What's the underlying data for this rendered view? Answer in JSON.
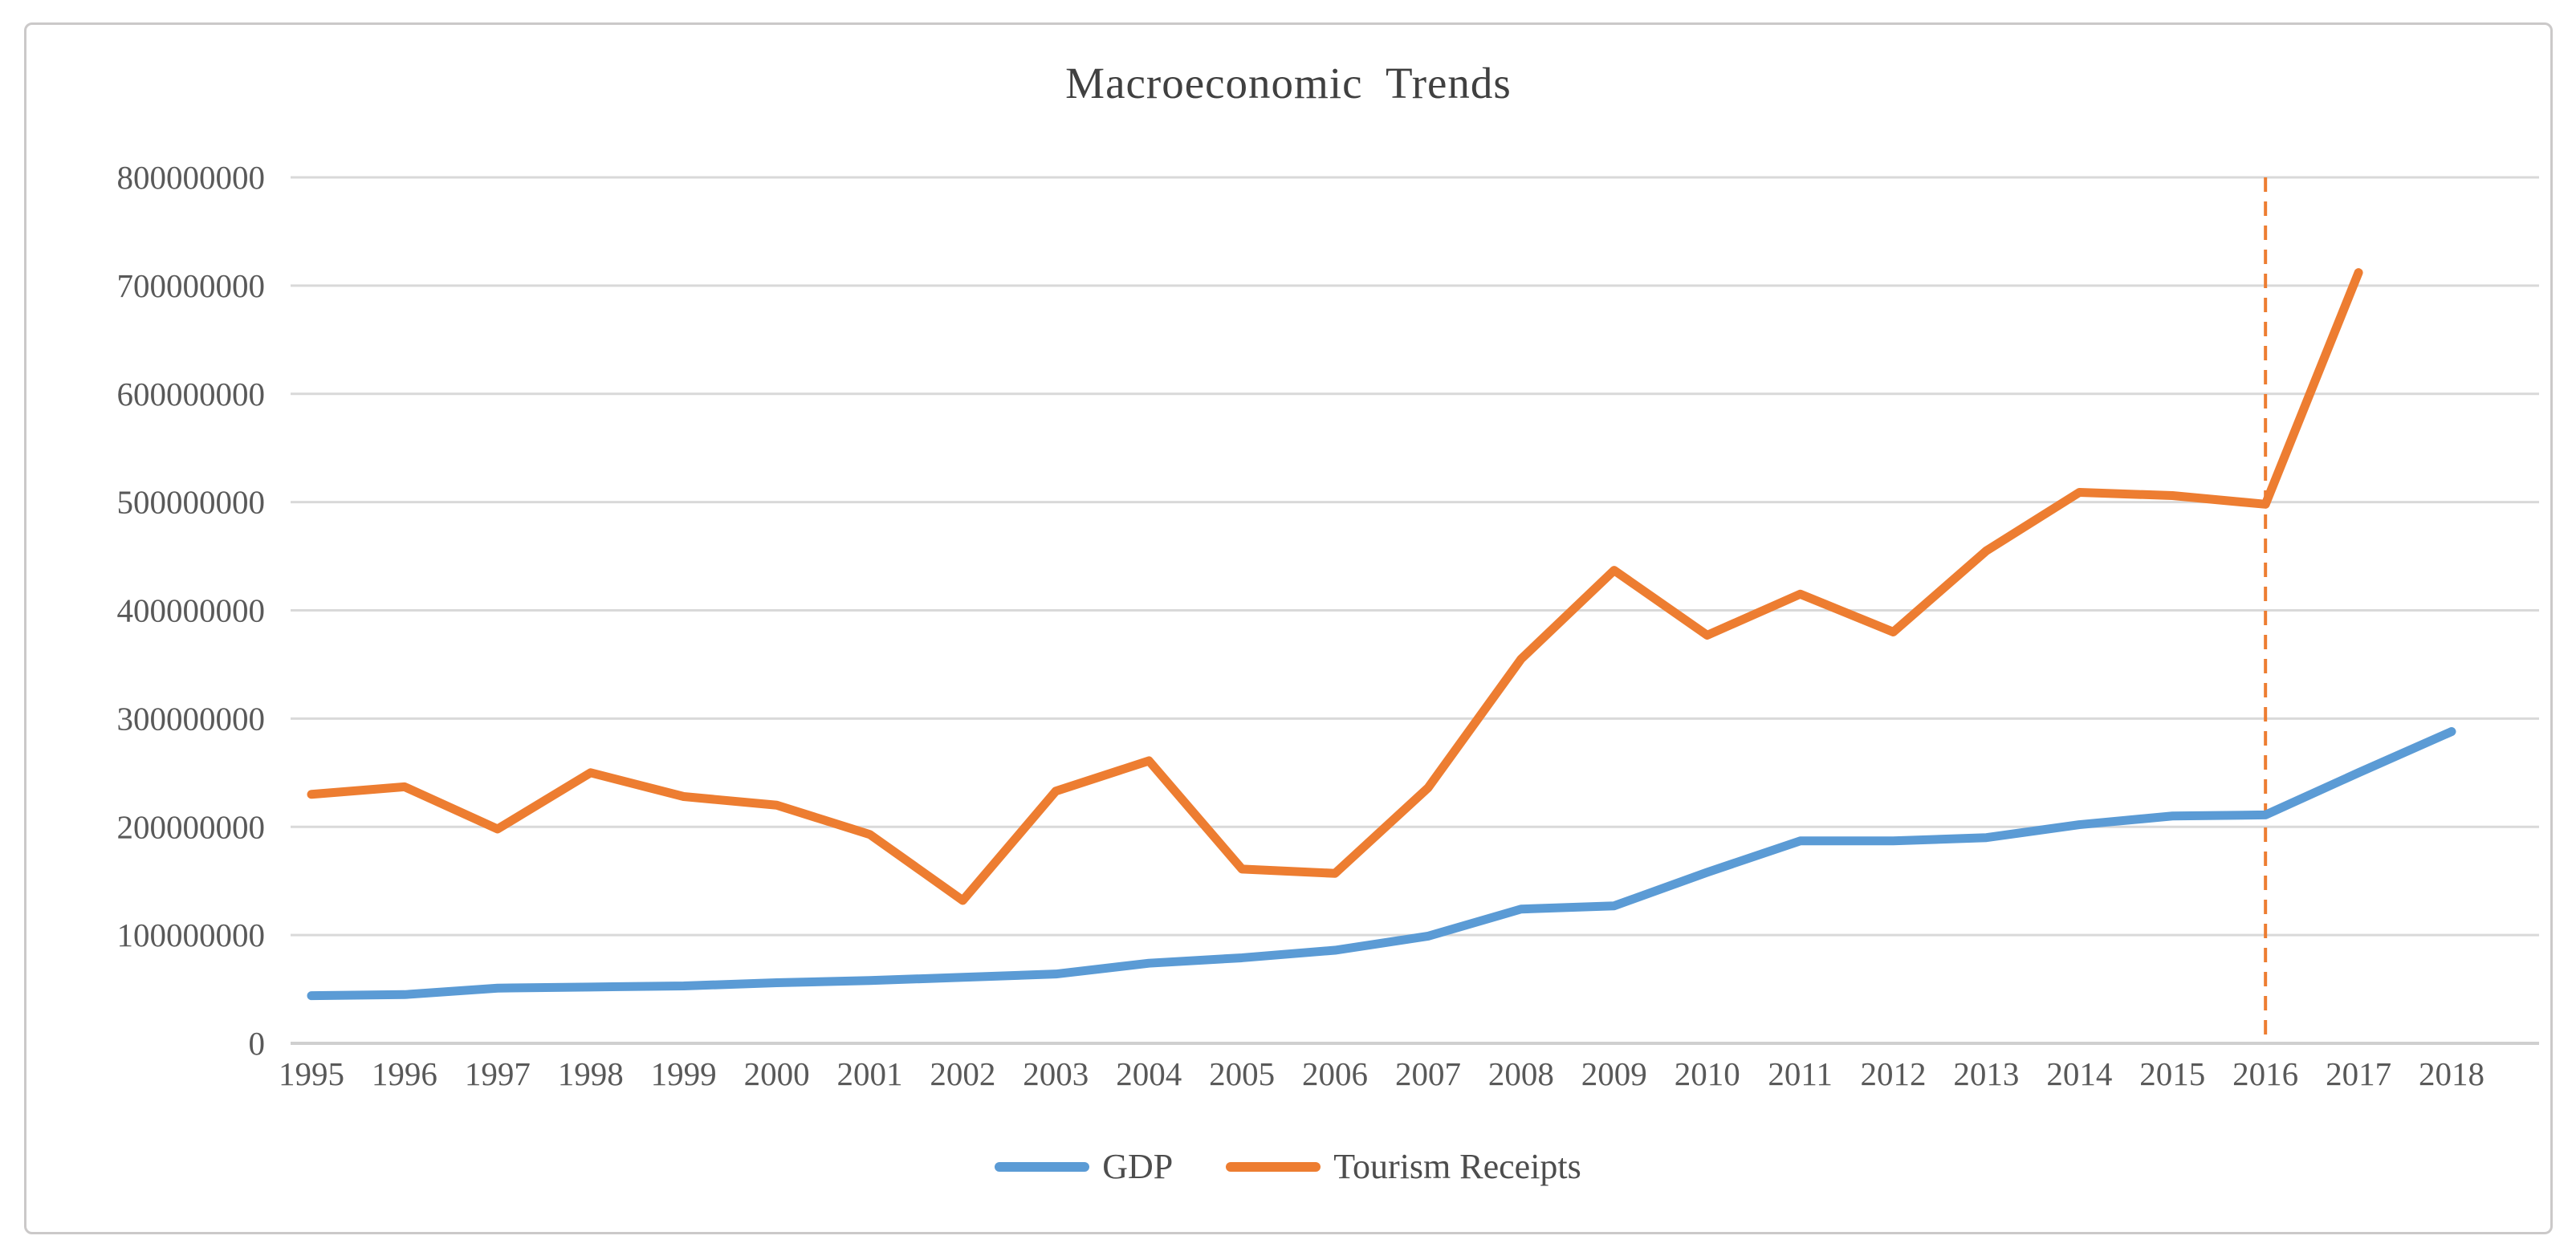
{
  "title": "Macroeconomic  Trends",
  "legend": {
    "items": [
      {
        "label": "GDP",
        "color": "#5b9bd5"
      },
      {
        "label": "Tourism Receipts",
        "color": "#ed7d31"
      }
    ]
  },
  "y_axis": {
    "labels": [
      "800000000",
      "700000000",
      "600000000",
      "500000000",
      "400000000",
      "300000000",
      "200000000",
      "100000000",
      "0"
    ]
  },
  "x_axis": {
    "labels": [
      "1995",
      "1996",
      "1997",
      "1998",
      "1999",
      "2000",
      "2001",
      "2002",
      "2003",
      "2004",
      "2005",
      "2006",
      "2007",
      "2008",
      "2009",
      "2010",
      "2011",
      "2012",
      "2013",
      "2014",
      "2015",
      "2016",
      "2017",
      "2018"
    ]
  },
  "colors": {
    "gdp_line": "#5b9bd5",
    "tourism_line": "#ed7d31",
    "gridline": "#d9d9d9",
    "axis_line": "#cfcfcf",
    "tick_text": "#595959",
    "title_text": "#404040",
    "chart_border": "#cbc9c9",
    "vline": "#ed7d31"
  },
  "chart_data": {
    "type": "line",
    "title": "Macroeconomic  Trends",
    "x": [
      1995,
      1996,
      1997,
      1998,
      1999,
      2000,
      2001,
      2002,
      2003,
      2004,
      2005,
      2006,
      2007,
      2008,
      2009,
      2010,
      2011,
      2012,
      2013,
      2014,
      2015,
      2016,
      2017,
      2018
    ],
    "series": [
      {
        "name": "GDP",
        "color": "#5b9bd5",
        "values": [
          44000000,
          45000000,
          51000000,
          52000000,
          53000000,
          56000000,
          58000000,
          61000000,
          64000000,
          74000000,
          79000000,
          86000000,
          99000000,
          124000000,
          127000000,
          158000000,
          187000000,
          187000000,
          190000000,
          202000000,
          210000000,
          211000000,
          250000000,
          288000000
        ]
      },
      {
        "name": "Tourism Receipts",
        "color": "#ed7d31",
        "values": [
          230000000,
          237000000,
          198000000,
          250000000,
          228000000,
          220000000,
          193000000,
          132000000,
          233000000,
          261000000,
          161000000,
          157000000,
          236000000,
          355000000,
          437000000,
          377000000,
          415000000,
          380000000,
          455000000,
          509000000,
          506000000,
          498000000,
          712000000,
          null
        ]
      }
    ],
    "ylim": [
      0,
      800000000
    ],
    "ytick_interval": 100000000,
    "xlabel": "",
    "ylabel": "",
    "grid": "horizontal",
    "legend_position": "bottom",
    "annotations": [
      {
        "type": "vline",
        "x": 2016,
        "style": "dashed",
        "color": "#ed7d31"
      }
    ]
  }
}
